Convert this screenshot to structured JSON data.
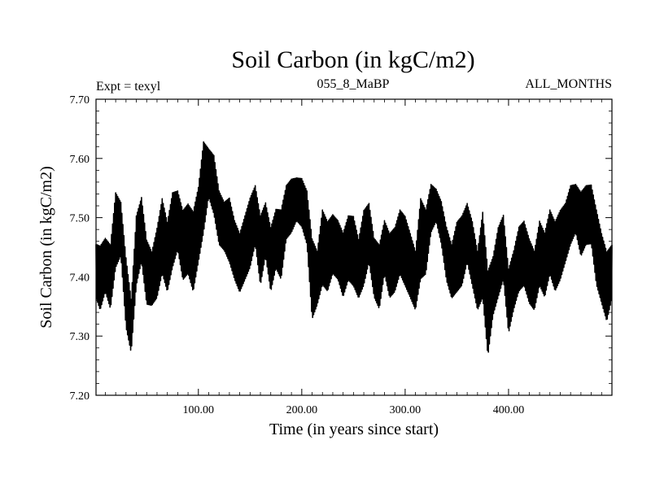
{
  "colors": {
    "background": "#ffffff",
    "line": "#000000",
    "axes": "#000000"
  },
  "chart_data": {
    "type": "line",
    "title": "Soil Carbon (in kgC/m2)",
    "subtitle_left": "Expt = texyl",
    "subtitle_center": "055_8_MaBP",
    "subtitle_right": "ALL_MONTHS",
    "xlabel": "Time (in years since start)",
    "ylabel": "Soil Carbon (in kgC/m2)",
    "xlim": [
      1,
      500
    ],
    "ylim": [
      7.2,
      7.7
    ],
    "x_ticks": [
      100,
      200,
      300,
      400
    ],
    "x_tick_labels": [
      "100.00",
      "200.00",
      "300.00",
      "400.00"
    ],
    "y_ticks": [
      7.2,
      7.3,
      7.4,
      7.5,
      7.6,
      7.7
    ],
    "y_tick_labels": [
      "7.20",
      "7.30",
      "7.40",
      "7.50",
      "7.60",
      "7.70"
    ],
    "grid": false,
    "series": [
      {
        "x": [
          1,
          5,
          10,
          15,
          20,
          25,
          30,
          35,
          40,
          45,
          50,
          55,
          60,
          65,
          70,
          75,
          80,
          85,
          90,
          95,
          100,
          105,
          110,
          115,
          120,
          125,
          130,
          135,
          140,
          145,
          150,
          155,
          160,
          165,
          170,
          175,
          180,
          185,
          190,
          195,
          200,
          205,
          210,
          215,
          220,
          225,
          230,
          235,
          240,
          245,
          250,
          255,
          260,
          265,
          270,
          275,
          280,
          285,
          290,
          295,
          300,
          305,
          310,
          315,
          320,
          325,
          330,
          335,
          340,
          345,
          350,
          355,
          360,
          365,
          370,
          375,
          380,
          385,
          390,
          395,
          400,
          405,
          410,
          415,
          420,
          425,
          430,
          435,
          440,
          445,
          450,
          455,
          460,
          465,
          470,
          475,
          480,
          485,
          490,
          495,
          500
        ],
        "y": [
          7.41,
          7.38,
          7.42,
          7.4,
          7.47,
          7.49,
          7.36,
          7.29,
          7.44,
          7.48,
          7.39,
          7.37,
          7.41,
          7.46,
          7.42,
          7.47,
          7.5,
          7.44,
          7.46,
          7.42,
          7.47,
          7.52,
          7.58,
          7.56,
          7.5,
          7.49,
          7.47,
          7.45,
          7.41,
          7.44,
          7.47,
          7.5,
          7.44,
          7.48,
          7.42,
          7.46,
          7.45,
          7.5,
          7.52,
          7.54,
          7.53,
          7.5,
          7.41,
          7.38,
          7.45,
          7.43,
          7.46,
          7.45,
          7.42,
          7.44,
          7.43,
          7.4,
          7.44,
          7.47,
          7.42,
          7.4,
          7.45,
          7.41,
          7.42,
          7.45,
          7.43,
          7.41,
          7.38,
          7.46,
          7.45,
          7.52,
          7.53,
          7.5,
          7.43,
          7.4,
          7.42,
          7.44,
          7.47,
          7.43,
          7.38,
          7.41,
          7.32,
          7.38,
          7.42,
          7.45,
          7.35,
          7.39,
          7.43,
          7.44,
          7.41,
          7.38,
          7.44,
          7.42,
          7.45,
          7.43,
          7.44,
          7.47,
          7.5,
          7.52,
          7.48,
          7.5,
          7.51,
          7.45,
          7.41,
          7.37,
          7.4
        ],
        "envelope_high": [
          7.46,
          7.46,
          7.47,
          7.46,
          7.55,
          7.53,
          7.44,
          7.37,
          7.51,
          7.54,
          7.47,
          7.45,
          7.49,
          7.54,
          7.5,
          7.55,
          7.55,
          7.52,
          7.53,
          7.52,
          7.56,
          7.64,
          7.62,
          7.61,
          7.55,
          7.53,
          7.54,
          7.5,
          7.48,
          7.51,
          7.54,
          7.56,
          7.51,
          7.53,
          7.49,
          7.52,
          7.52,
          7.56,
          7.57,
          7.57,
          7.57,
          7.55,
          7.47,
          7.45,
          7.52,
          7.5,
          7.51,
          7.5,
          7.48,
          7.51,
          7.51,
          7.47,
          7.52,
          7.53,
          7.47,
          7.46,
          7.5,
          7.48,
          7.49,
          7.52,
          7.51,
          7.48,
          7.45,
          7.54,
          7.52,
          7.56,
          7.55,
          7.53,
          7.49,
          7.46,
          7.5,
          7.51,
          7.53,
          7.5,
          7.45,
          7.52,
          7.42,
          7.44,
          7.49,
          7.51,
          7.42,
          7.45,
          7.49,
          7.5,
          7.47,
          7.45,
          7.5,
          7.48,
          7.52,
          7.5,
          7.52,
          7.53,
          7.56,
          7.56,
          7.55,
          7.56,
          7.56,
          7.52,
          7.48,
          7.45,
          7.46
        ],
        "envelope_low": [
          7.36,
          7.34,
          7.37,
          7.34,
          7.41,
          7.43,
          7.31,
          7.27,
          7.38,
          7.42,
          7.35,
          7.35,
          7.36,
          7.4,
          7.37,
          7.41,
          7.44,
          7.39,
          7.4,
          7.37,
          7.42,
          7.47,
          7.53,
          7.5,
          7.45,
          7.44,
          7.42,
          7.39,
          7.37,
          7.39,
          7.41,
          7.45,
          7.38,
          7.43,
          7.37,
          7.41,
          7.39,
          7.46,
          7.47,
          7.49,
          7.48,
          7.45,
          7.32,
          7.35,
          7.38,
          7.37,
          7.4,
          7.39,
          7.36,
          7.39,
          7.38,
          7.36,
          7.38,
          7.42,
          7.36,
          7.34,
          7.4,
          7.36,
          7.37,
          7.4,
          7.38,
          7.36,
          7.34,
          7.39,
          7.4,
          7.47,
          7.49,
          7.45,
          7.39,
          7.36,
          7.37,
          7.38,
          7.42,
          7.38,
          7.34,
          7.36,
          7.26,
          7.33,
          7.36,
          7.39,
          7.3,
          7.34,
          7.37,
          7.38,
          7.35,
          7.34,
          7.38,
          7.36,
          7.4,
          7.37,
          7.39,
          7.42,
          7.45,
          7.47,
          7.43,
          7.45,
          7.45,
          7.38,
          7.35,
          7.32,
          7.36
        ]
      }
    ]
  }
}
